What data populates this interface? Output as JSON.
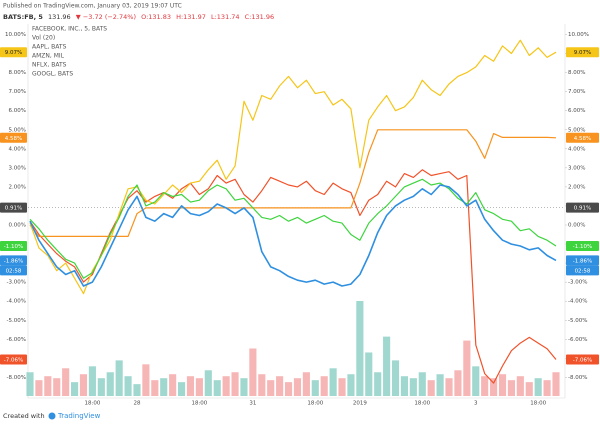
{
  "header": {
    "published": "Published on TradingView.com, January 03, 2019 19:07 UTC",
    "symbol": "BATS:FB, 5",
    "last": "131.96",
    "change": "▼ −3.72 (−2.74%)",
    "open": "O:131.83",
    "high": "H:131.97",
    "low": "L:131.74",
    "close": "C:131.96"
  },
  "footer": {
    "created": "Created with",
    "brand": "TradingView"
  },
  "chart_data": {
    "type": "line",
    "categories": [
      null,
      null,
      null,
      null,
      null,
      null,
      null,
      "18:00",
      null,
      null,
      null,
      null,
      "28",
      null,
      null,
      null,
      null,
      null,
      null,
      "18:00",
      null,
      null,
      null,
      null,
      null,
      "31",
      null,
      null,
      null,
      null,
      null,
      null,
      "18:00",
      null,
      null,
      null,
      null,
      "2019",
      null,
      null,
      null,
      null,
      null,
      null,
      "18:00",
      null,
      null,
      null,
      null,
      null,
      "3",
      null,
      null,
      null,
      null,
      null,
      null,
      "18:00",
      null,
      null
    ],
    "ylim": [
      -9,
      11
    ],
    "yticks": [
      {
        "value": 10,
        "label": "10.00%"
      },
      {
        "value": 9,
        "label": "9.00%"
      },
      {
        "value": 8,
        "label": "8.00%"
      },
      {
        "value": 7,
        "label": "7.00%"
      },
      {
        "value": 6,
        "label": "6.00%"
      },
      {
        "value": 5,
        "label": "5.00%"
      },
      {
        "value": 4,
        "label": "4.00%"
      },
      {
        "value": 3,
        "label": "3.00%"
      },
      {
        "value": 2,
        "label": "2.00%"
      },
      {
        "value": 1,
        "label": "1.00%"
      },
      {
        "value": 0,
        "label": "0.00%"
      },
      {
        "value": -1,
        "label": "-1.00%"
      },
      {
        "value": -2,
        "label": "-2.00%"
      },
      {
        "value": -3,
        "label": "-3.00%"
      },
      {
        "value": -4,
        "label": "-4.00%"
      },
      {
        "value": -5,
        "label": "-5.00%"
      },
      {
        "value": -6,
        "label": "-6.00%"
      },
      {
        "value": -7,
        "label": "-7.00%"
      },
      {
        "value": -8,
        "label": "-8.00%"
      }
    ],
    "grid": false,
    "price_line": {
      "value": 0.91,
      "label": "0.91%",
      "color": "#4a4a4a"
    },
    "volume": {
      "name": "Vol (20)",
      "up_color": "#8fd1c8",
      "down_color": "#f5a9a9",
      "values": [
        12,
        8,
        10,
        9,
        14,
        7,
        11,
        15,
        9,
        12,
        18,
        10,
        6,
        16,
        8,
        9,
        11,
        7,
        10,
        9,
        13,
        8,
        10,
        12,
        9,
        24,
        11,
        8,
        10,
        7,
        9,
        12,
        8,
        10,
        14,
        9,
        11,
        48,
        22,
        12,
        30,
        18,
        10,
        9,
        12,
        8,
        11,
        9,
        13,
        28,
        15,
        10,
        9,
        11,
        8,
        10,
        7,
        9,
        8,
        12
      ]
    },
    "series": [
      {
        "name": "FACEBOOK, INC., 5, BATS",
        "color": "#2f8fe0",
        "last_label": "-1.86%",
        "countdown": "02:58",
        "values": [
          0.2,
          -0.8,
          -1.5,
          -2.2,
          -2.6,
          -2.4,
          -3.2,
          -3.0,
          -2.2,
          -1.2,
          -0.2,
          0.8,
          1.5,
          0.4,
          0.2,
          0.6,
          0.4,
          1.0,
          0.6,
          0.5,
          0.7,
          1.1,
          0.9,
          0.6,
          0.9,
          0.4,
          -1.4,
          -2.2,
          -2.4,
          -2.7,
          -2.9,
          -3.0,
          -2.9,
          -3.1,
          -3.0,
          -3.2,
          -3.1,
          -2.6,
          -1.6,
          -0.4,
          0.5,
          1.0,
          1.3,
          1.5,
          1.9,
          1.6,
          2.1,
          2.0,
          1.6,
          1.0,
          1.3,
          0.3,
          -0.3,
          -0.8,
          -1.0,
          -1.1,
          -1.3,
          -1.2,
          -1.6,
          -1.86
        ]
      },
      {
        "name": "AAPL, BATS",
        "color": "#f0522a",
        "last_label": "-7.06%",
        "values": [
          0.2,
          -0.5,
          -1.0,
          -1.5,
          -1.9,
          -2.2,
          -3.0,
          -2.6,
          -1.5,
          -0.4,
          0.5,
          1.4,
          1.8,
          1.2,
          1.5,
          1.7,
          1.4,
          1.9,
          2.2,
          1.6,
          1.9,
          2.6,
          2.2,
          2.4,
          1.6,
          1.2,
          1.8,
          2.5,
          2.3,
          2.1,
          2.0,
          2.3,
          1.8,
          1.6,
          2.2,
          1.9,
          1.7,
          0.5,
          1.3,
          1.6,
          2.3,
          2.0,
          2.7,
          2.5,
          2.9,
          2.6,
          2.7,
          2.8,
          2.4,
          2.6,
          -6.3,
          -7.8,
          -8.3,
          -7.4,
          -6.6,
          -6.2,
          -5.9,
          -6.2,
          -6.5,
          -7.06
        ]
      },
      {
        "name": "AMZN, MIL",
        "color": "#f7931e",
        "last_label": "4.58%",
        "values": [
          0.0,
          -0.6,
          -0.6,
          -0.6,
          -0.6,
          -0.6,
          -0.6,
          -0.6,
          -0.6,
          -0.6,
          -0.6,
          -0.6,
          0.6,
          0.9,
          0.9,
          0.9,
          0.9,
          0.9,
          0.9,
          0.9,
          0.9,
          0.9,
          0.9,
          0.9,
          0.9,
          0.9,
          0.9,
          0.9,
          0.9,
          0.9,
          0.9,
          0.9,
          0.9,
          0.9,
          0.9,
          0.9,
          0.9,
          2.2,
          3.8,
          5.0,
          5.0,
          5.0,
          5.0,
          5.0,
          5.0,
          5.0,
          5.0,
          5.0,
          5.0,
          5.0,
          4.4,
          3.5,
          4.8,
          4.6,
          4.6,
          4.6,
          4.6,
          4.6,
          4.6,
          4.58
        ]
      },
      {
        "name": "NFLX, BATS",
        "color": "#f5c518",
        "last_label": "9.07%",
        "values": [
          0.1,
          -1.2,
          -1.6,
          -2.4,
          -2.0,
          -2.8,
          -3.6,
          -2.4,
          -1.6,
          -0.8,
          0.6,
          1.9,
          2.0,
          1.3,
          1.1,
          1.6,
          2.1,
          1.7,
          2.2,
          2.3,
          2.9,
          3.4,
          2.4,
          3.1,
          6.5,
          5.5,
          6.8,
          6.6,
          7.3,
          7.8,
          7.2,
          7.6,
          6.9,
          7.0,
          6.3,
          6.6,
          6.1,
          3.0,
          5.5,
          6.2,
          6.8,
          6.0,
          6.2,
          6.7,
          7.6,
          7.1,
          6.8,
          7.4,
          7.8,
          8.0,
          8.3,
          8.9,
          8.6,
          9.4,
          9.0,
          9.7,
          8.9,
          9.3,
          8.8,
          9.07
        ]
      },
      {
        "name": "GOOGL, BATS",
        "color": "#3ed43e",
        "last_label": "-1.10%",
        "values": [
          0.3,
          -0.2,
          -0.8,
          -1.3,
          -1.8,
          -2.0,
          -2.8,
          -2.5,
          -1.6,
          -0.5,
          0.4,
          1.5,
          2.1,
          1.0,
          1.2,
          1.7,
          1.5,
          1.6,
          1.2,
          1.3,
          1.8,
          2.1,
          1.9,
          1.3,
          1.4,
          0.9,
          0.4,
          0.3,
          0.5,
          0.2,
          0.4,
          0.1,
          0.3,
          0.5,
          0.2,
          0.1,
          -0.5,
          -0.8,
          0.1,
          0.6,
          1.0,
          1.5,
          2.0,
          2.2,
          2.4,
          2.1,
          2.2,
          1.9,
          1.4,
          1.1,
          1.7,
          0.8,
          0.6,
          0.3,
          0.2,
          -0.3,
          -0.2,
          -0.6,
          -0.8,
          -1.1
        ]
      }
    ]
  }
}
